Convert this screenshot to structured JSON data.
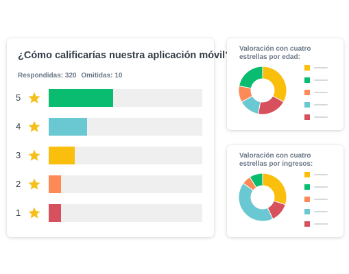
{
  "survey": {
    "question": "¿Cómo calificarías nuestra aplicación móvil?",
    "answered_label": "Respondidas: 320",
    "skipped_label": "Omitidas: 10"
  },
  "colors": {
    "green": "#09bc6f",
    "teal": "#6ac8d2",
    "yellow": "#f9bf0c",
    "orange": "#fc8a57",
    "red": "#d6505d",
    "track": "#efefef",
    "star": "#f6bf1a"
  },
  "chart_data": [
    {
      "type": "bar",
      "orientation": "horizontal",
      "title": "¿Cómo calificarías nuestra aplicación móvil?",
      "categories": [
        "5",
        "4",
        "3",
        "2",
        "1"
      ],
      "values": [
        42,
        25,
        17,
        8,
        8
      ],
      "xlim": [
        0,
        100
      ],
      "colors": [
        "#09bc6f",
        "#6ac8d2",
        "#f9bf0c",
        "#fc8a57",
        "#d6505d"
      ],
      "icon": "star-icon"
    },
    {
      "type": "pie",
      "title": "Valoración con cuatro estrellas por edad:",
      "values": [
        33,
        20,
        14,
        11,
        22
      ],
      "colors": [
        "#f9bf0c",
        "#d6505d",
        "#6ac8d2",
        "#fc8a57",
        "#09bc6f"
      ],
      "legend_colors": [
        "#f9bf0c",
        "#09bc6f",
        "#fc8a57",
        "#6ac8d2",
        "#d6505d"
      ],
      "legend_position": "right"
    },
    {
      "type": "pie",
      "title": "Valoración con cuatro estrellas por ingresos:",
      "values": [
        30,
        13,
        42,
        6,
        9
      ],
      "colors": [
        "#f9bf0c",
        "#d6505d",
        "#6ac8d2",
        "#fc8a57",
        "#09bc6f"
      ],
      "legend_colors": [
        "#f9bf0c",
        "#09bc6f",
        "#fc8a57",
        "#6ac8d2",
        "#d6505d"
      ],
      "legend_position": "right"
    }
  ]
}
